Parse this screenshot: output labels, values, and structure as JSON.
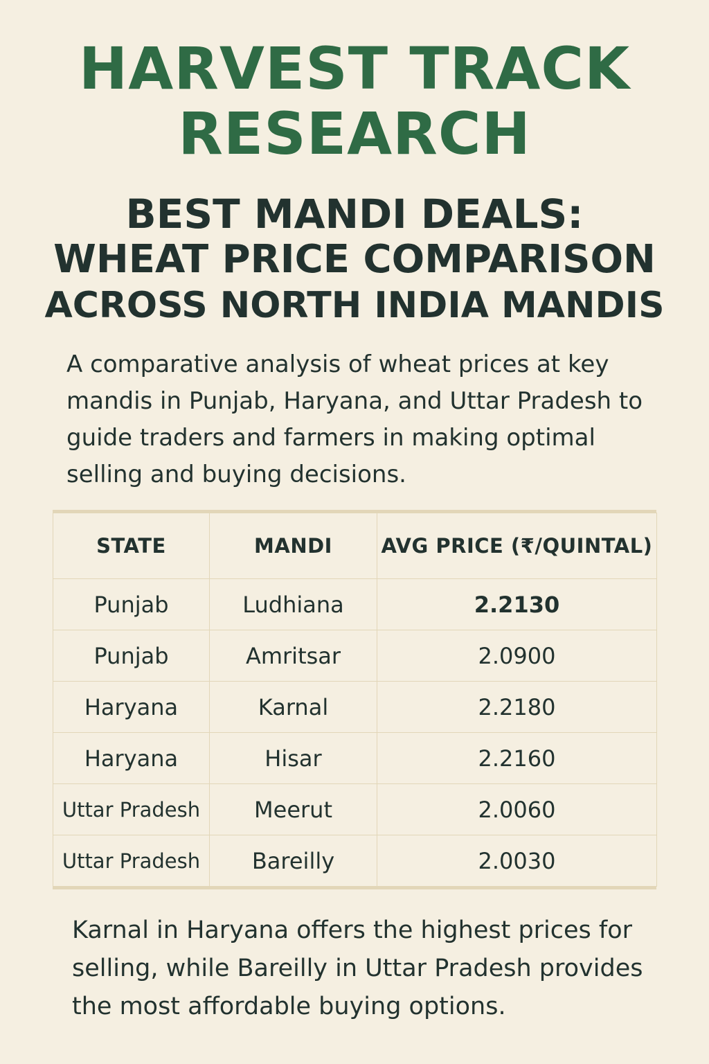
{
  "brand": {
    "line1": "HARVEST TRACK",
    "line2": "RESEARCH"
  },
  "headline": {
    "line1": "BEST MANDI DEALS:",
    "line2": "WHEAT PRICE COMPARISON",
    "line3": "ACROSS NORTH INDIA MANDIS"
  },
  "intro": "A comparative analysis of wheat prices at key mandis in Punjab, Haryana, and Uttar Pradesh to guide traders and farmers in making optimal selling and buying decisions.",
  "table": {
    "headers": [
      "STATE",
      "MANDI",
      "AVG PRICE (₹/QUINTAL)"
    ],
    "rows": [
      {
        "state": "Punjab",
        "mandi": "Ludhiana",
        "price": "2.2130"
      },
      {
        "state": "Punjab",
        "mandi": "Amritsar",
        "price": "2.0900"
      },
      {
        "state": "Haryana",
        "mandi": "Karnal",
        "price": "2.2180"
      },
      {
        "state": "Haryana",
        "mandi": "Hisar",
        "price": "2.2160"
      },
      {
        "state": "Uttar Pradesh",
        "mandi": "Meerut",
        "price": "2.0060"
      },
      {
        "state": "Uttar Pradesh",
        "mandi": "Bareilly",
        "price": "2.0030"
      }
    ]
  },
  "conclusion": "Karnal in Haryana offers the highest prices for selling, while Bareilly in Uttar Pradesh provides the most affordable buying options."
}
